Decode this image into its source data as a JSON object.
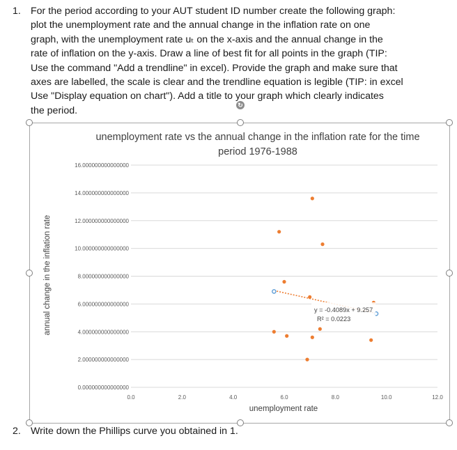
{
  "question1": {
    "number": "1.",
    "lines": [
      "For the period according to your AUT student ID number create the following graph:",
      "plot the unemployment rate and the annual change in the inflation rate on one",
      "graph, with the unemployment rate uₜ  on the x-axis and the annual change in the",
      "rate of inflation on the y-axis. Draw a line of best fit for all points in the graph (TIP:",
      "Use the command \"Add a trendline\" in excel). Provide the graph and make sure that",
      "axes are labelled, the scale is clear and the trendline equation is legible (TIP: in excel",
      "Use \"Display equation on chart\"). Add a title to your graph which clearly indicates",
      "the period."
    ]
  },
  "question2": {
    "number": "2.",
    "text": "Write down the Phillips curve you obtained in 1."
  },
  "chart_data": {
    "type": "scatter",
    "title_lines": [
      "unemployment rate vs the annual change in the inflation rate for the time",
      "period 1976-1988"
    ],
    "xlabel": "unemployment rate",
    "ylabel": "annual change in the inflation rate",
    "xlim": [
      0,
      12
    ],
    "ylim": [
      0,
      16
    ],
    "x_ticks": [
      "0.0",
      "2.0",
      "4.0",
      "6.0",
      "8.0",
      "10.0",
      "12.0"
    ],
    "y_ticks": [
      "0.000000000000000",
      "2.000000000000000",
      "4.000000000000000",
      "6.000000000000000",
      "8.000000000000000",
      "10.000000000000000",
      "12.000000000000000",
      "14.000000000000000",
      "16.000000000000000"
    ],
    "gridlines": true,
    "point_color": "#ED7D31",
    "trend_color": "#ED7D31",
    "selected_point_color": "#5B9BD5",
    "points": [
      {
        "x": 5.6,
        "y": 6.9,
        "selected": true
      },
      {
        "x": 5.6,
        "y": 4.0
      },
      {
        "x": 5.8,
        "y": 11.2
      },
      {
        "x": 6.0,
        "y": 7.6
      },
      {
        "x": 6.1,
        "y": 3.7
      },
      {
        "x": 6.9,
        "y": 2.0
      },
      {
        "x": 7.0,
        "y": 6.5
      },
      {
        "x": 7.1,
        "y": 13.6
      },
      {
        "x": 7.1,
        "y": 3.6
      },
      {
        "x": 7.4,
        "y": 4.2
      },
      {
        "x": 7.5,
        "y": 10.3
      },
      {
        "x": 9.4,
        "y": 3.4
      },
      {
        "x": 9.5,
        "y": 6.1
      },
      {
        "x": 9.6,
        "y": 5.3,
        "selected": true
      }
    ],
    "trendline": {
      "x_range": [
        5.6,
        9.6
      ],
      "slope": -0.4089,
      "intercept": 9.257,
      "equation": "y = -0.4089x + 9.257",
      "r2": "R² = 0.0223"
    }
  }
}
